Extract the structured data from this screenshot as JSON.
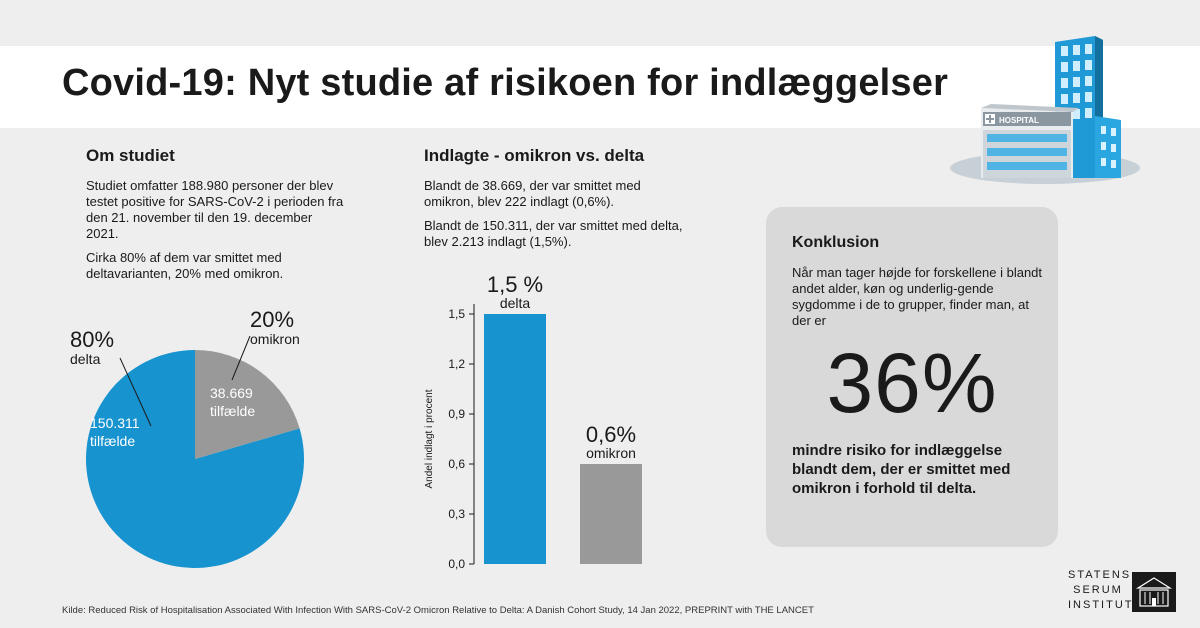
{
  "title": "Covid-19: Nyt studie af risikoen for indlæggelser",
  "hospital_sign": "HOSPITAL",
  "about": {
    "title": "Om studiet",
    "p1": "Studiet omfatter 188.980 personer der blev testet positive for SARS-CoV-2 i perioden fra den 21. november til den 19. december 2021.",
    "p2": "Cirka 80% af dem var smittet med deltavarianten, 20% med omikron."
  },
  "hospitalized": {
    "title": "Indlagte - omikron vs. delta",
    "p1": "Blandt de 38.669, der var smittet med omikron, blev 222 indlagt (0,6%).",
    "p2": "Blandt de 150.311, der var smittet med delta, blev 2.213 indlagt (1,5%)."
  },
  "conclusion": {
    "title": "Konklusion",
    "text": "Når man tager højde for forskellene i blandt andet alder, køn og underlig-gende sygdomme i de to grupper, finder man, at der er",
    "big": "36%",
    "bottom": "mindre risiko for indlæggelse blandt dem, der er smittet med omikron i forhold til delta."
  },
  "source": "Kilde: Reduced Risk of Hospitalisation Associated With Infection With SARS-CoV-2 Omicron Relative to Delta: A Danish Cohort Study, 14 Jan 2022, PREPRINT with THE LANCET",
  "logo": {
    "line1": "STATENS",
    "line2": "SERUM",
    "line3": "INSTITUT"
  },
  "colors": {
    "delta": "#1793cf",
    "omikron": "#999999",
    "box": "#d9d9d9"
  },
  "chart_data": [
    {
      "type": "pie",
      "slices": [
        {
          "name": "delta",
          "percent_label": "80%",
          "value": 150311,
          "value_label": "150.311",
          "unit_label": "tilfælde"
        },
        {
          "name": "omikron",
          "percent_label": "20%",
          "value": 38669,
          "value_label": "38.669",
          "unit_label": "tilfælde"
        }
      ]
    },
    {
      "type": "bar",
      "categories": [
        "delta",
        "omikron"
      ],
      "values": [
        1.5,
        0.6
      ],
      "value_labels": [
        "1,5 %",
        "0,6%"
      ],
      "ylabel": "Andel indlagt i procent",
      "ylim": [
        0,
        1.5
      ],
      "yticks": [
        0,
        0.3,
        0.6,
        0.9,
        1.2,
        1.5
      ],
      "ytick_labels": [
        "0,0",
        "0,3",
        "0,6",
        "0,9",
        "1,2",
        "1,5"
      ],
      "grid": false
    }
  ]
}
